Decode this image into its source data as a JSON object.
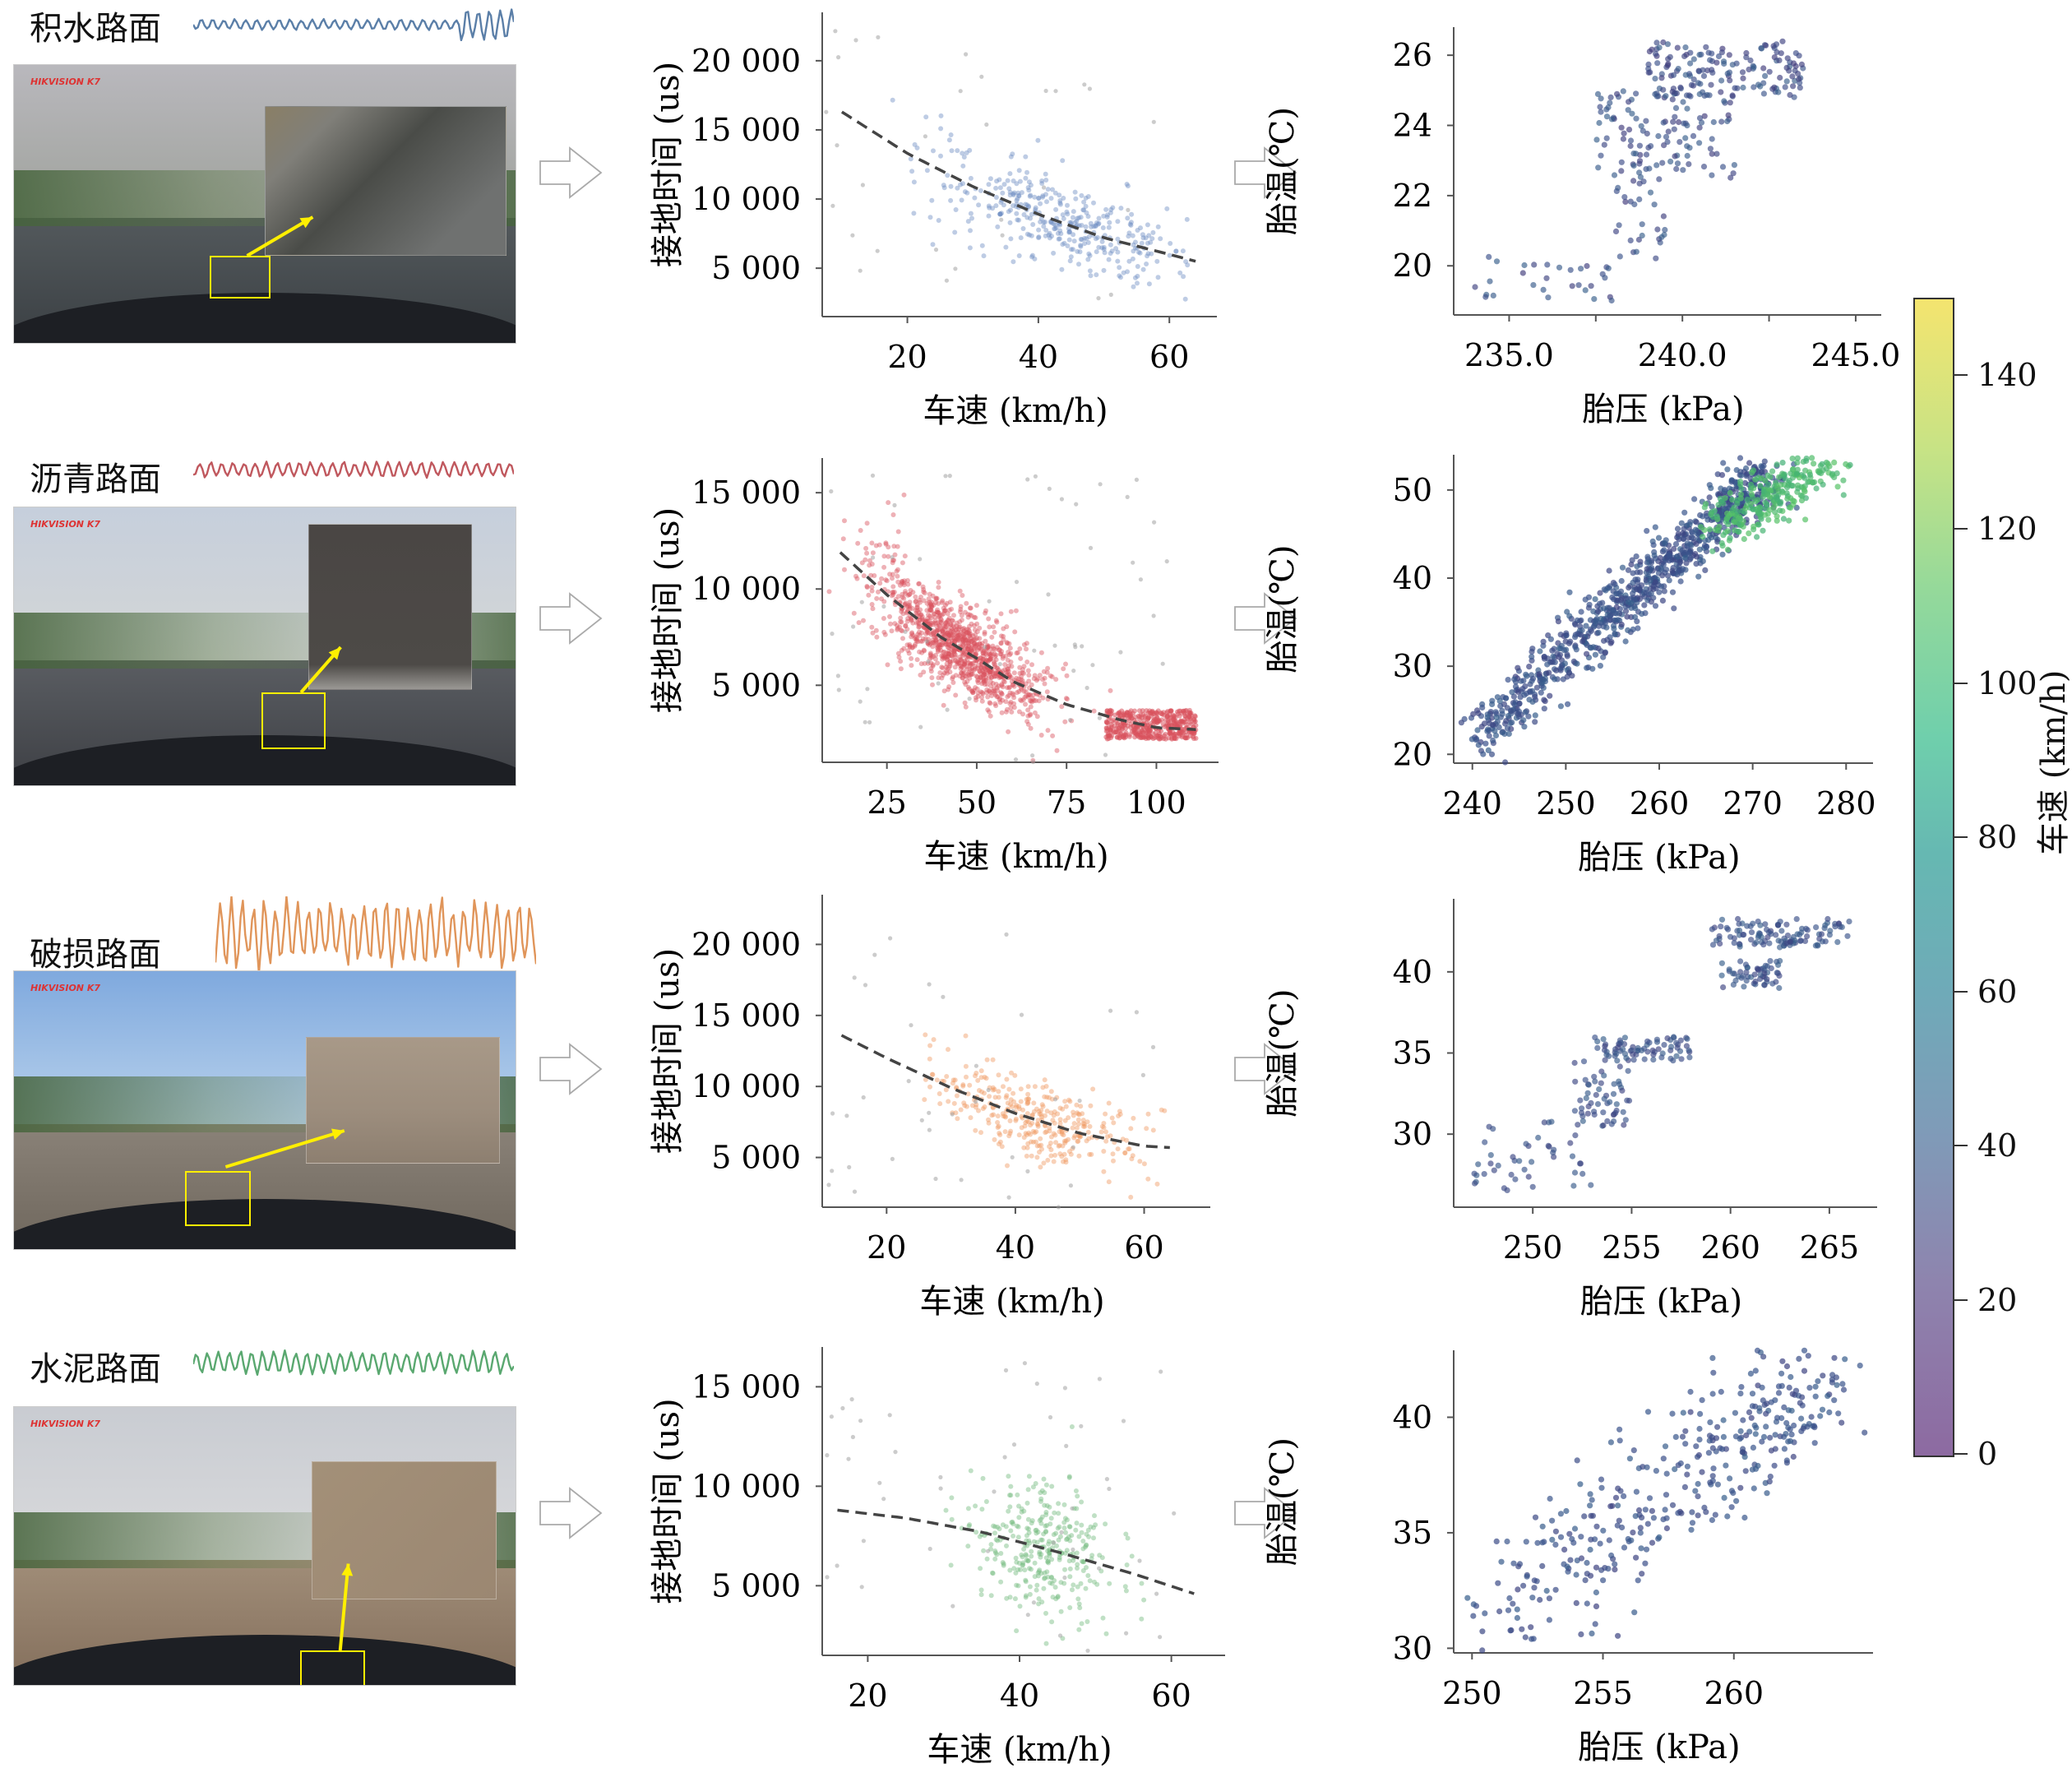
{
  "figure": {
    "rows": [
      {
        "road_label": "积水路面",
        "wave_color": "#5b7fa8",
        "photo": {
          "brand": "HIKVISION K7",
          "theme": "wet"
        }
      },
      {
        "road_label": "沥青路面",
        "wave_color": "#c0585e",
        "photo": {
          "brand": "HIKVISION K7",
          "theme": "asphalt"
        }
      },
      {
        "road_label": "破损路面",
        "wave_color": "#e0955a",
        "photo": {
          "brand": "HIKVISION K7",
          "theme": "damaged"
        }
      },
      {
        "road_label": "水泥路面",
        "wave_color": "#5aa870",
        "photo": {
          "brand": "HIKVISION K7",
          "theme": "cement"
        }
      }
    ],
    "colorbar": {
      "title": "车速 (km/h)",
      "range": [
        0,
        150
      ],
      "ticks": [
        "0",
        "20",
        "40",
        "60",
        "80",
        "100",
        "120",
        "140"
      ],
      "colormap": "viridis (alpha 0.6)"
    }
  },
  "chart_data": [
    {
      "id": "wet-contact",
      "type": "scatter",
      "title": "",
      "xlabel": "车速 (km/h)",
      "ylabel": "接地时间 (us)",
      "xlim": [
        7,
        66
      ],
      "ylim": [
        1500,
        23500
      ],
      "xticks": [
        20,
        40,
        60
      ],
      "xtick_labels": [
        "20",
        "40",
        "60"
      ],
      "yticks": [
        5000,
        10000,
        15000,
        20000
      ],
      "ytick_labels": [
        "5 000",
        "10 000",
        "15 000",
        "20 000"
      ],
      "color": "#6f8fc4",
      "fit": {
        "type": "quadratic",
        "points": [
          [
            10,
            16300
          ],
          [
            20,
            13300
          ],
          [
            30,
            10900
          ],
          [
            40,
            8900
          ],
          [
            50,
            7200
          ],
          [
            60,
            6000
          ],
          [
            64,
            5500
          ]
        ]
      },
      "cloud": {
        "n": 380,
        "x_center": 42,
        "x_spread": 10,
        "y_noise": 1400,
        "outliers": 30
      }
    },
    {
      "id": "wet-temp",
      "type": "scatter",
      "xlabel": "胎压 (kPa)",
      "ylabel": "胎温(℃)",
      "xlim": [
        233.4,
        245.5
      ],
      "ylim": [
        18.6,
        26.8
      ],
      "xticks": [
        235,
        237.5,
        240,
        242.5,
        245
      ],
      "xtick_labels": [
        "235.0",
        "",
        "240.0",
        "",
        "245.0"
      ],
      "yticks": [
        20,
        22,
        24,
        26
      ],
      "ytick_labels": [
        "20",
        "22",
        "24",
        "26"
      ],
      "color_by": "speed",
      "speed_range": [
        25,
        45
      ],
      "clusters": [
        {
          "x": [
            234,
            238
          ],
          "y": [
            19,
            20.3
          ],
          "n": 30
        },
        {
          "x": [
            238,
            239.5
          ],
          "y": [
            20,
            23
          ],
          "n": 40
        },
        {
          "x": [
            237.5,
            241.5
          ],
          "y": [
            22.5,
            25
          ],
          "n": 110
        },
        {
          "x": [
            239,
            243.5
          ],
          "y": [
            24.8,
            26.4
          ],
          "n": 150
        }
      ]
    },
    {
      "id": "asphalt-contact",
      "type": "scatter",
      "xlabel": "车速 (km/h)",
      "ylabel": "接地时间 (us)",
      "xlim": [
        7,
        115
      ],
      "ylim": [
        1000,
        16800
      ],
      "xticks": [
        25,
        50,
        75,
        100
      ],
      "xtick_labels": [
        "25",
        "50",
        "75",
        "100"
      ],
      "yticks": [
        5000,
        10000,
        15000
      ],
      "ytick_labels": [
        "5 000",
        "10 000",
        "15 000"
      ],
      "color": "#d9525d",
      "fit": {
        "type": "quadratic",
        "points": [
          [
            12,
            11900
          ],
          [
            25,
            9700
          ],
          [
            40,
            7500
          ],
          [
            50,
            6400
          ],
          [
            60,
            5200
          ],
          [
            75,
            4000
          ],
          [
            90,
            3200
          ],
          [
            100,
            2800
          ],
          [
            111,
            2700
          ]
        ]
      },
      "cloud": {
        "n": 1100,
        "x_center": 45,
        "x_spread": 12,
        "y_noise": 1100,
        "second_cluster": {
          "x": [
            86,
            111
          ],
          "y": [
            2200,
            3700
          ],
          "n": 420
        },
        "outliers": 60
      }
    },
    {
      "id": "asphalt-temp",
      "type": "scatter",
      "xlabel": "胎压 (kPa)",
      "ylabel": "胎温(℃)",
      "xlim": [
        238,
        282
      ],
      "ylim": [
        19,
        54
      ],
      "xticks": [
        240,
        250,
        260,
        270,
        280
      ],
      "xtick_labels": [
        "240",
        "250",
        "260",
        "270",
        "280"
      ],
      "yticks": [
        20,
        30,
        40,
        50
      ],
      "ytick_labels": [
        "20",
        "30",
        "40",
        "50"
      ],
      "color_by": "speed",
      "band": {
        "from": [
          240,
          21
        ],
        "to": [
          272,
          52
        ],
        "width": 1.6,
        "n": 900,
        "speed_low": 30,
        "speed_high": 45
      },
      "high_speed_cluster": {
        "x": [
          266,
          279
        ],
        "y": [
          43,
          53
        ],
        "n": 260,
        "speed": [
          95,
          110
        ]
      }
    },
    {
      "id": "damaged-contact",
      "type": "scatter",
      "xlabel": "车速 (km/h)",
      "ylabel": "接地时间 (us)",
      "xlim": [
        10,
        69
      ],
      "ylim": [
        1500,
        23500
      ],
      "xticks": [
        20,
        40,
        60
      ],
      "xtick_labels": [
        "20",
        "40",
        "60"
      ],
      "yticks": [
        5000,
        10000,
        15000,
        20000
      ],
      "ytick_labels": [
        "5 000",
        "10 000",
        "15 000",
        "20 000"
      ],
      "color": "#ef9a62",
      "fit": {
        "type": "quadratic",
        "points": [
          [
            13,
            13600
          ],
          [
            20,
            12000
          ],
          [
            30,
            9900
          ],
          [
            40,
            8100
          ],
          [
            50,
            6700
          ],
          [
            60,
            5800
          ],
          [
            64,
            5700
          ]
        ]
      },
      "cloud": {
        "n": 340,
        "x_center": 43,
        "x_spread": 8,
        "y_noise": 1300,
        "outliers": 40
      }
    },
    {
      "id": "damaged-temp",
      "type": "scatter",
      "xlabel": "胎压 (kPa)",
      "ylabel": "胎温(℃)",
      "xlim": [
        246,
        267
      ],
      "ylim": [
        25.5,
        44.5
      ],
      "xticks": [
        250,
        255,
        260,
        265
      ],
      "xtick_labels": [
        "250",
        "255",
        "260",
        "265"
      ],
      "yticks": [
        30,
        35,
        40
      ],
      "ytick_labels": [
        "30",
        "35",
        "40"
      ],
      "color_by": "speed",
      "speed_range": [
        30,
        45
      ],
      "clusters": [
        {
          "x": [
            247,
            253
          ],
          "y": [
            26.5,
            31
          ],
          "n": 45
        },
        {
          "x": [
            252,
            255
          ],
          "y": [
            30.5,
            34.5
          ],
          "n": 55
        },
        {
          "x": [
            253,
            258
          ],
          "y": [
            34.5,
            36
          ],
          "n": 75
        },
        {
          "x": [
            259,
            266
          ],
          "y": [
            41.5,
            43.3
          ],
          "n": 110
        },
        {
          "x": [
            259.5,
            262.5
          ],
          "y": [
            39,
            40.7
          ],
          "n": 55
        }
      ]
    },
    {
      "id": "cement-contact",
      "type": "scatter",
      "xlabel": "车速 (km/h)",
      "ylabel": "接地时间 (us)",
      "xlim": [
        14,
        66
      ],
      "ylim": [
        1500,
        17000
      ],
      "xticks": [
        20,
        40,
        60
      ],
      "xtick_labels": [
        "20",
        "40",
        "60"
      ],
      "yticks": [
        5000,
        10000,
        15000
      ],
      "ytick_labels": [
        "5 000",
        "10 000",
        "15 000"
      ],
      "color": "#73bb7f",
      "fit": {
        "type": "quadratic",
        "points": [
          [
            16,
            8800
          ],
          [
            25,
            8400
          ],
          [
            35,
            7700
          ],
          [
            45,
            6700
          ],
          [
            55,
            5600
          ],
          [
            63,
            4600
          ]
        ]
      },
      "cloud": {
        "n": 320,
        "x_center": 43,
        "x_spread": 4.5,
        "y_noise": 1700,
        "outliers": 50
      }
    },
    {
      "id": "cement-temp",
      "type": "scatter",
      "xlabel": "胎压 (kPa)",
      "ylabel": "胎温(℃)",
      "xlim": [
        249.3,
        265
      ],
      "ylim": [
        29.8,
        42.9
      ],
      "xticks": [
        250,
        255,
        260
      ],
      "xtick_labels": [
        "250",
        "255",
        "260"
      ],
      "yticks": [
        30,
        35,
        40
      ],
      "ytick_labels": [
        "30",
        "35",
        "40"
      ],
      "color_by": "speed",
      "band": {
        "from": [
          250,
          30.5
        ],
        "to": [
          264,
          42
        ],
        "width": 1.3,
        "n": 380,
        "speed_low": 30,
        "speed_high": 45
      }
    }
  ]
}
